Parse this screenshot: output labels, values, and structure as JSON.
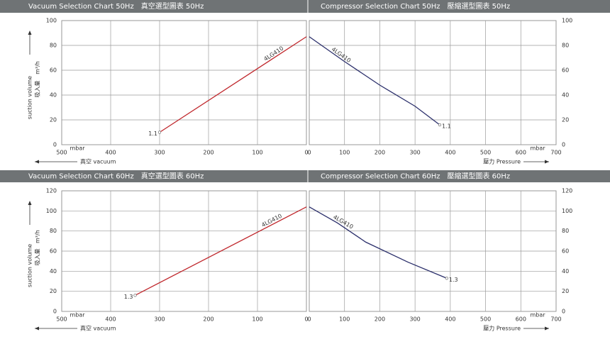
{
  "chart_data": [
    {
      "type": "line",
      "title": "Vacuum Selection Chart 50Hz　真空選型圖表 50Hz",
      "x_label": "真空 vacuum",
      "x_unit": "mbar",
      "y_label": "suction volume",
      "y_label_zh": "吸入量",
      "y_unit": "m³/h",
      "xlim": [
        500,
        0
      ],
      "xticks": [
        500,
        400,
        300,
        200,
        100,
        0
      ],
      "ylim": [
        0,
        100
      ],
      "yticks": [
        0,
        20,
        40,
        60,
        80,
        100
      ],
      "grid": true,
      "x": [
        300,
        0
      ],
      "series": [
        {
          "name": "4LG410",
          "color": "#c0282d",
          "values": [
            10,
            87
          ]
        }
      ],
      "point_label": "1.1"
    },
    {
      "type": "line",
      "title": "Compressor Selection Chart 50Hz　壓縮選型圖表 50Hz",
      "x_label": "壓力 Pressure",
      "x_unit": "mbar",
      "xlim": [
        0,
        700
      ],
      "xticks": [
        0,
        100,
        200,
        300,
        400,
        500,
        600,
        700
      ],
      "ylim": [
        0,
        100
      ],
      "yticks": [
        0,
        20,
        40,
        60,
        80,
        100
      ],
      "grid": true,
      "x": [
        0,
        100,
        200,
        300,
        370
      ],
      "series": [
        {
          "name": "4LG410",
          "color": "#2b2f6b",
          "values": [
            87,
            67,
            48,
            31,
            16
          ]
        }
      ],
      "point_label": "1.1"
    },
    {
      "type": "line",
      "title": "Vacuum Selection Chart 60Hz　真空選型圖表 60Hz",
      "x_label": "真空 vacuum",
      "x_unit": "mbar",
      "y_label": "suction volume",
      "y_label_zh": "吸入量",
      "y_unit": "m³/h",
      "xlim": [
        500,
        0
      ],
      "xticks": [
        500,
        400,
        300,
        200,
        100,
        0
      ],
      "ylim": [
        0,
        120
      ],
      "yticks": [
        0,
        20,
        40,
        60,
        80,
        100,
        120
      ],
      "grid": true,
      "x": [
        350,
        0
      ],
      "series": [
        {
          "name": "4LG410",
          "color": "#c0282d",
          "values": [
            16,
            104
          ]
        }
      ],
      "point_label": "1.3"
    },
    {
      "type": "line",
      "title": "Compressor Selection Chart 60Hz　壓縮選型圖表 60Hz",
      "x_label": "壓力 Pressure",
      "x_unit": "mbar",
      "xlim": [
        0,
        700
      ],
      "xticks": [
        0,
        100,
        200,
        300,
        400,
        500,
        600,
        700
      ],
      "ylim": [
        0,
        120
      ],
      "yticks": [
        0,
        20,
        40,
        60,
        80,
        100,
        120
      ],
      "grid": true,
      "x": [
        0,
        80,
        160,
        280,
        390
      ],
      "series": [
        {
          "name": "4LG410",
          "color": "#2b2f6b",
          "values": [
            104,
            88,
            69,
            49,
            33
          ]
        }
      ],
      "point_label": "1.3"
    }
  ]
}
